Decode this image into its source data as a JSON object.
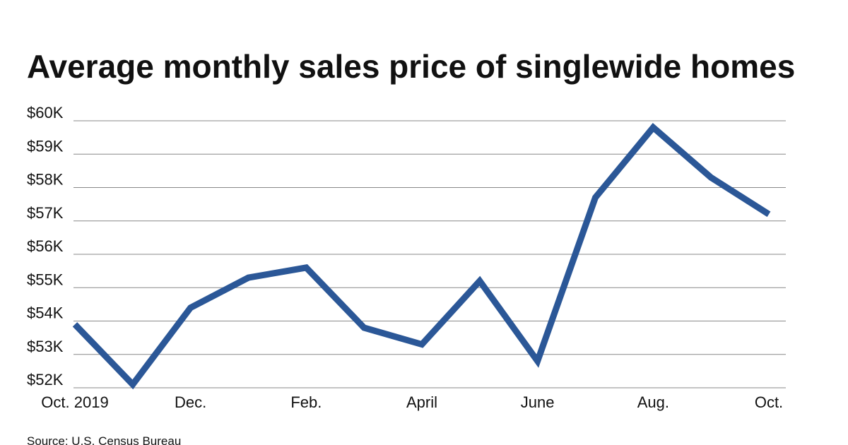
{
  "chart_data": {
    "type": "line",
    "title": "Average monthly sales price of singlewide homes",
    "source": "Source: U.S. Census Bureau",
    "categories": [
      "Oct. 2019",
      null,
      "Dec.",
      null,
      "Feb.",
      null,
      "April",
      null,
      "June",
      null,
      "Aug.",
      null,
      "Oct."
    ],
    "series": [
      {
        "color": "#2b5797",
        "values": [
          53900,
          52100,
          54400,
          55300,
          55600,
          53800,
          53300,
          55200,
          52800,
          57700,
          59800,
          58300,
          57200
        ]
      }
    ],
    "ylim": [
      52000,
      60000
    ],
    "yticks": [
      {
        "value": 52000,
        "label": "$52K"
      },
      {
        "value": 53000,
        "label": "$53K"
      },
      {
        "value": 54000,
        "label": "$54K"
      },
      {
        "value": 55000,
        "label": "$55K"
      },
      {
        "value": 56000,
        "label": "$56K"
      },
      {
        "value": 57000,
        "label": "$57K"
      },
      {
        "value": 58000,
        "label": "$58K"
      },
      {
        "value": 59000,
        "label": "$59K"
      },
      {
        "value": 60000,
        "label": "$60K"
      }
    ],
    "grid": true
  }
}
